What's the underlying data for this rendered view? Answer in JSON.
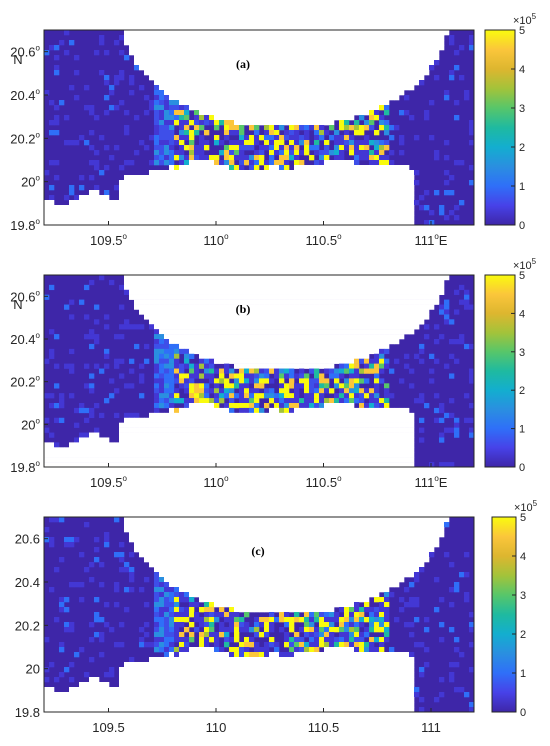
{
  "chart_data": [
    {
      "type": "heatmap",
      "panel_label": "(a)",
      "axis_label_n": "N",
      "x_ticks": [
        {
          "value": 109.5,
          "text": "109.5",
          "sup": "o"
        },
        {
          "value": 110.0,
          "text": "110",
          "sup": "o"
        },
        {
          "value": 110.5,
          "text": "110.5",
          "sup": "o"
        },
        {
          "value": 111.0,
          "text": "111",
          "sup": "o",
          "suffix": "E"
        }
      ],
      "y_ticks": [
        {
          "value": 20.6,
          "text": "20.6",
          "sup": "o"
        },
        {
          "value": 20.4,
          "text": "20.4",
          "sup": "o"
        },
        {
          "value": 20.2,
          "text": "20.2",
          "sup": "o"
        },
        {
          "value": 20.0,
          "text": "20",
          "sup": "o"
        },
        {
          "value": 19.8,
          "text": "19.8",
          "sup": "o"
        }
      ],
      "xlim": [
        109.2,
        111.2
      ],
      "ylim": [
        19.8,
        20.7
      ],
      "colorbar": {
        "ticks": [
          "0",
          "1",
          "2",
          "3",
          "4",
          "5"
        ],
        "exponent_base": "×10",
        "exponent": "5",
        "range": [
          0,
          500000
        ]
      },
      "seed": 11
    },
    {
      "type": "heatmap",
      "panel_label": "(b)",
      "axis_label_n": "N",
      "x_ticks": [
        {
          "value": 109.5,
          "text": "109.5",
          "sup": "o"
        },
        {
          "value": 110.0,
          "text": "110",
          "sup": "o"
        },
        {
          "value": 110.5,
          "text": "110.5",
          "sup": "o"
        },
        {
          "value": 111.0,
          "text": "111",
          "sup": "o",
          "suffix": "E"
        }
      ],
      "y_ticks": [
        {
          "value": 20.6,
          "text": "20.6",
          "sup": "o"
        },
        {
          "value": 20.4,
          "text": "20.4",
          "sup": "o"
        },
        {
          "value": 20.2,
          "text": "20.2",
          "sup": "o"
        },
        {
          "value": 20.0,
          "text": "20",
          "sup": "o"
        },
        {
          "value": 19.8,
          "text": "19.8",
          "sup": "o"
        }
      ],
      "xlim": [
        109.2,
        111.2
      ],
      "ylim": [
        19.8,
        20.7
      ],
      "colorbar": {
        "ticks": [
          "0",
          "1",
          "2",
          "3",
          "4",
          "5"
        ],
        "exponent_base": "×10",
        "exponent": "5",
        "range": [
          0,
          500000
        ]
      },
      "seed": 23
    },
    {
      "type": "heatmap",
      "panel_label": "(c)",
      "axis_label_n": "",
      "x_ticks": [
        {
          "value": 109.5,
          "text": "109.5",
          "sup": ""
        },
        {
          "value": 110.0,
          "text": "110",
          "sup": ""
        },
        {
          "value": 110.5,
          "text": "110.5",
          "sup": ""
        },
        {
          "value": 111.0,
          "text": "111",
          "sup": ""
        }
      ],
      "y_ticks": [
        {
          "value": 20.6,
          "text": "20.6",
          "sup": ""
        },
        {
          "value": 20.4,
          "text": "20.4",
          "sup": ""
        },
        {
          "value": 20.2,
          "text": "20.2",
          "sup": ""
        },
        {
          "value": 20.0,
          "text": "20",
          "sup": ""
        },
        {
          "value": 19.8,
          "text": "19.8",
          "sup": ""
        }
      ],
      "xlim": [
        109.2,
        111.2
      ],
      "ylim": [
        19.8,
        20.7
      ],
      "colorbar": {
        "ticks": [
          "0",
          "1",
          "2",
          "3",
          "4",
          "5"
        ],
        "exponent_base": "×10",
        "exponent": "5",
        "range": [
          0,
          500000
        ]
      },
      "seed": 37
    }
  ],
  "colors": {
    "low": "#3e26a8",
    "mid_blue": "#2c7fd8",
    "teal": "#2ab6a8",
    "green": "#5bc863",
    "yellow_green": "#c6c13a",
    "high": "#f9fb0e",
    "land": "#ffffff"
  }
}
